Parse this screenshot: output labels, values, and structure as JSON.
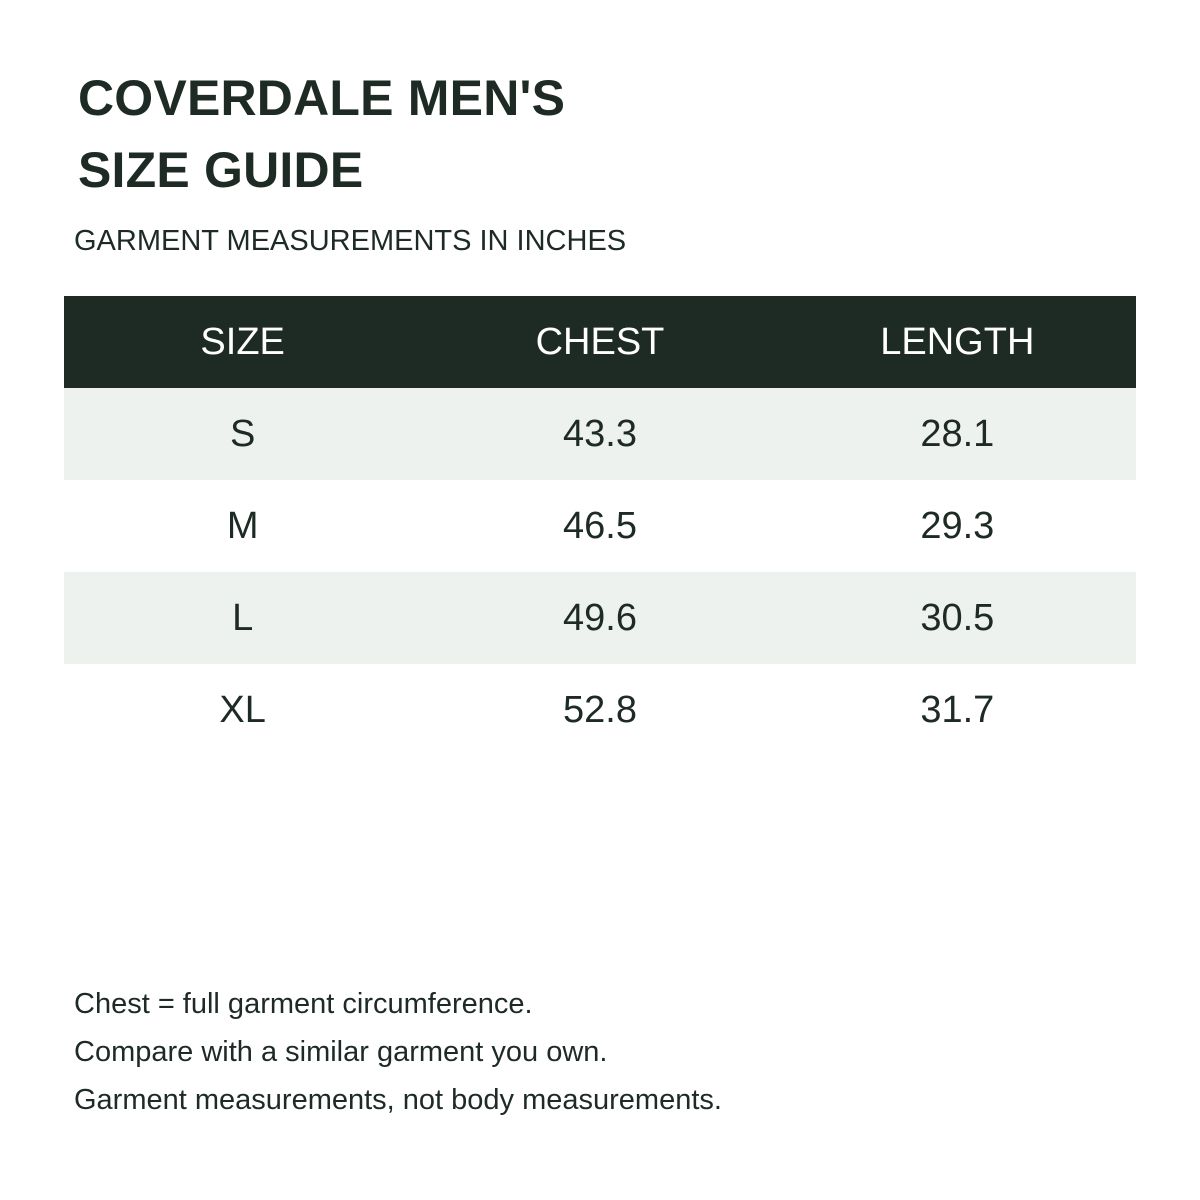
{
  "title": {
    "line1": "COVERDALE MEN'S",
    "line2": "SIZE GUIDE"
  },
  "subtitle": "GARMENT MEASUREMENTS IN INCHES",
  "table": {
    "headers": [
      "SIZE",
      "CHEST",
      "LENGTH"
    ],
    "rows": [
      {
        "size": "S",
        "chest": "43.3",
        "length": "28.1"
      },
      {
        "size": "M",
        "chest": "46.5",
        "length": "29.3"
      },
      {
        "size": "L",
        "chest": "49.6",
        "length": "30.5"
      },
      {
        "size": "XL",
        "chest": "52.8",
        "length": "31.7"
      }
    ]
  },
  "notes": [
    "Chest = full garment circumference.",
    "Compare with a similar garment you own.",
    "Garment measurements, not body measurements."
  ],
  "colors": {
    "header_bg": "#1e2b24",
    "row_shade": "#eef2ee",
    "text": "#1e2b24"
  }
}
